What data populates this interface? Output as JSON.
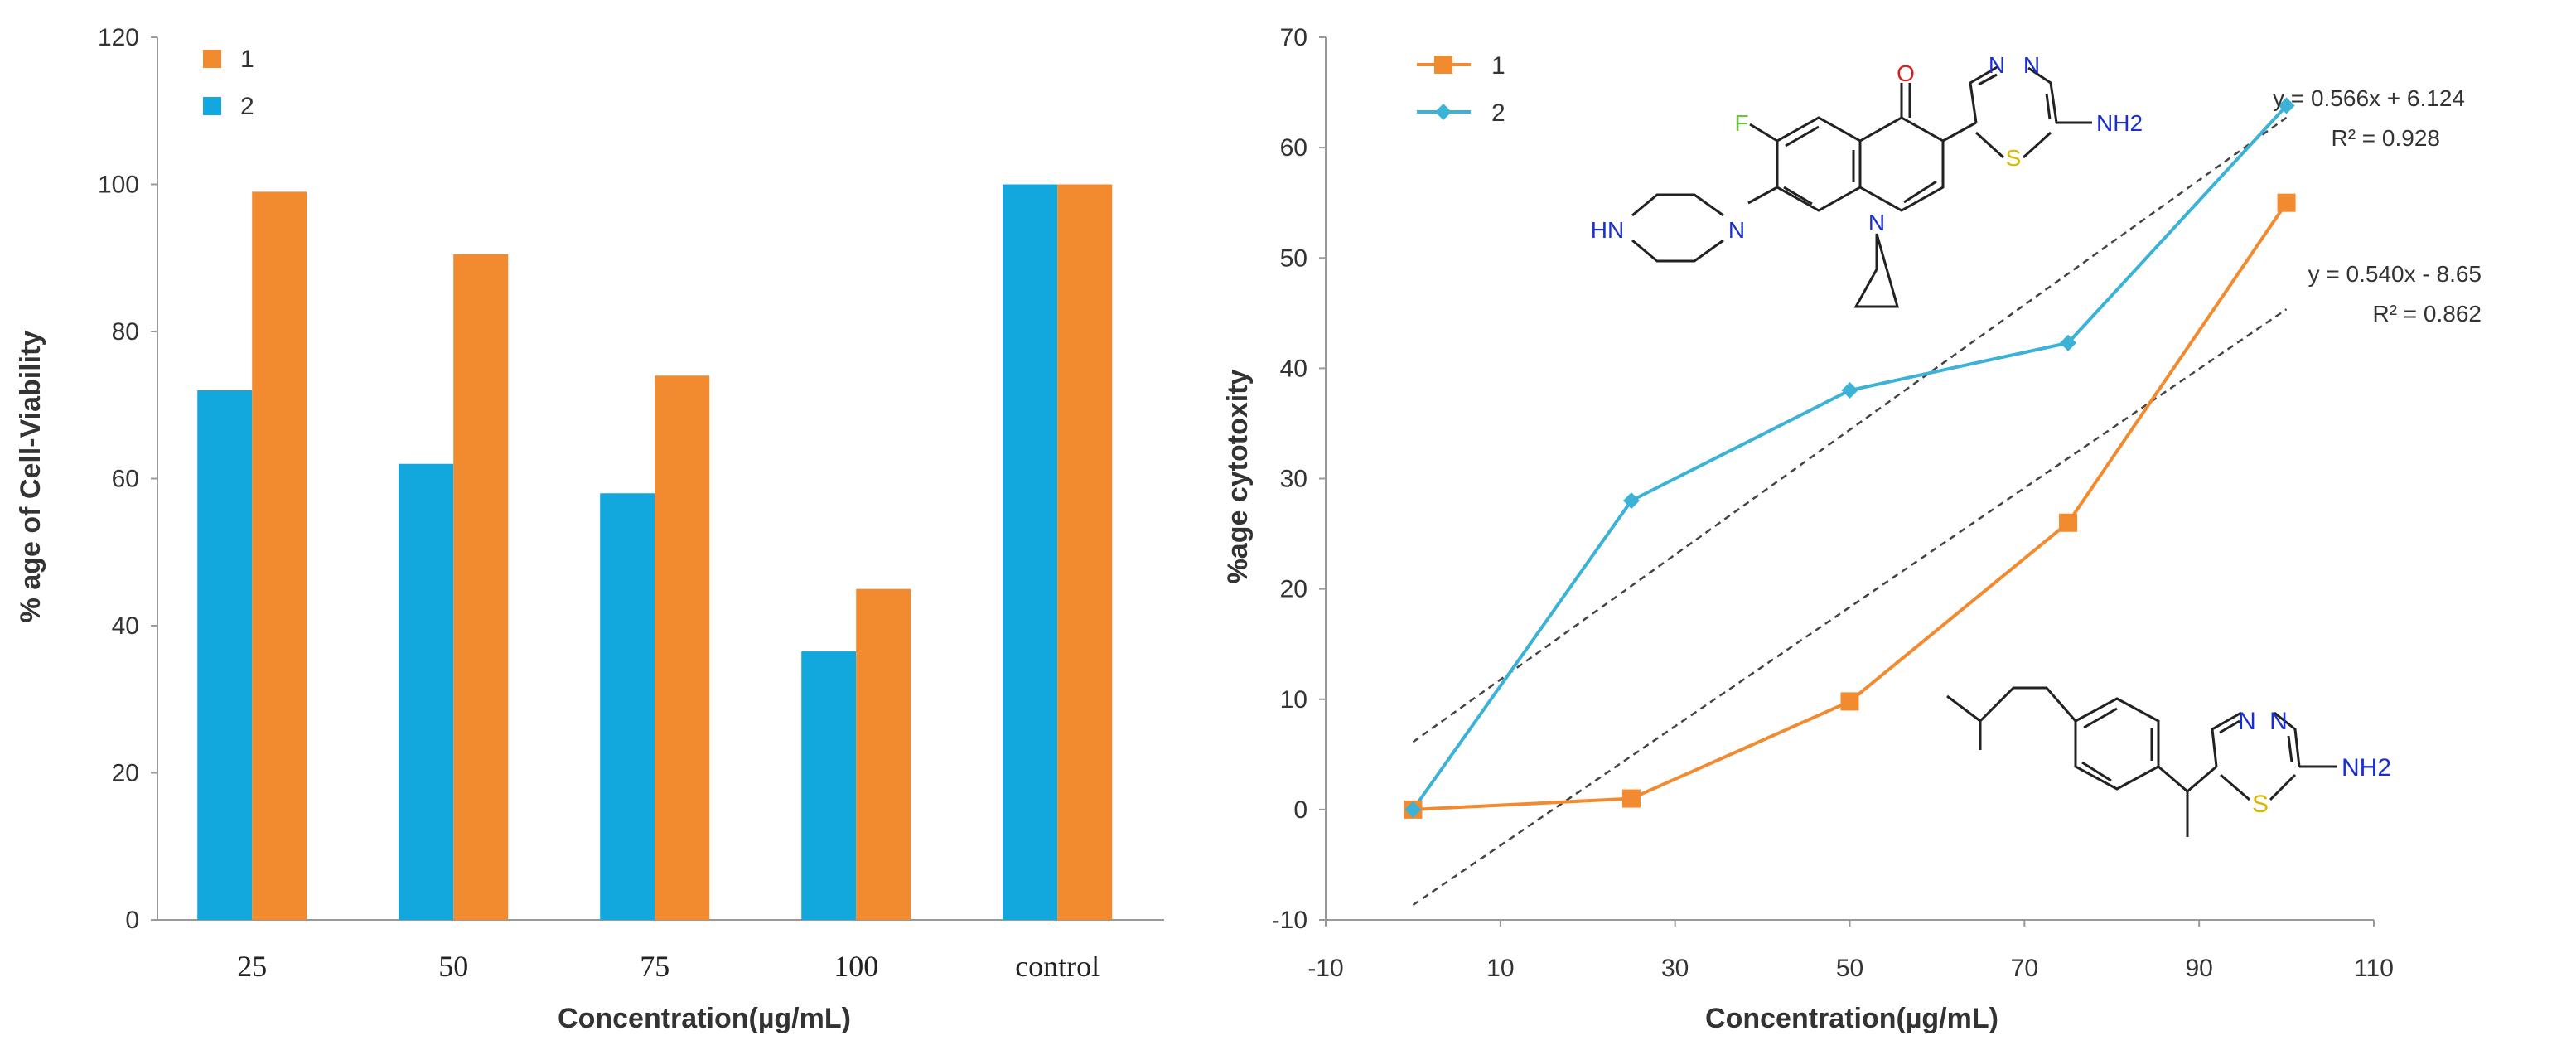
{
  "chart_data": [
    {
      "type": "bar",
      "xlabel": "Concentration(µg/mL)",
      "ylabel": "% age of Cell-Viability",
      "categories": [
        "25",
        "50",
        "75",
        "100",
        "control"
      ],
      "ylim": [
        0,
        120
      ],
      "yticks": [
        "0",
        "20",
        "40",
        "60",
        "80",
        "100",
        "120"
      ],
      "series": [
        {
          "name": "1",
          "color": "#f28a30",
          "values": [
            99,
            90.5,
            74,
            45,
            100
          ]
        },
        {
          "name": "2",
          "color": "#12a7dd",
          "values": [
            72,
            62,
            58,
            36.5,
            100
          ]
        }
      ],
      "legend": "top-left",
      "grid": false
    },
    {
      "type": "line",
      "xlabel": "Concentration(µg/mL)",
      "ylabel": "%age cytotoxity",
      "xlim": [
        -10,
        110
      ],
      "ylim": [
        -10,
        70
      ],
      "xticks": [
        "-10",
        "10",
        "30",
        "50",
        "70",
        "90",
        "110"
      ],
      "yticks": [
        "-10",
        "0",
        "10",
        "20",
        "30",
        "40",
        "50",
        "60",
        "70"
      ],
      "series": [
        {
          "name": "1",
          "color": "#f28a30",
          "marker": "square",
          "x": [
            0,
            25,
            50,
            75,
            100
          ],
          "y": [
            0,
            1,
            9.8,
            26,
            55
          ]
        },
        {
          "name": "2",
          "color": "#3bb2d6",
          "marker": "diamond",
          "x": [
            0,
            25,
            50,
            75,
            100
          ],
          "y": [
            0,
            28,
            38,
            42.3,
            63.8
          ]
        }
      ],
      "trendlines": [
        {
          "series": "2",
          "slope": 0.566,
          "intercept": 6.124,
          "equation": "y = 0.566x + 6.124",
          "r2_label": "R² = 0.928"
        },
        {
          "series": "1",
          "slope": 0.54,
          "intercept": -8.65,
          "equation": "y = 0.540x - 8.65",
          "r2_label": "R² = 0.862"
        }
      ],
      "legend": "top-left",
      "grid": false
    }
  ],
  "molecule_labels": {
    "top": {
      "oxygen": "O",
      "fluorine": "F",
      "nitrogen_ring": "N",
      "nitrogen_pip": "N",
      "hn": "HN",
      "n1": "N",
      "n2": "N",
      "sulfur": "S",
      "nh2": "NH2"
    },
    "bottom": {
      "n1": "N",
      "n2": "N",
      "sulfur": "S",
      "nh2": "NH2"
    }
  }
}
